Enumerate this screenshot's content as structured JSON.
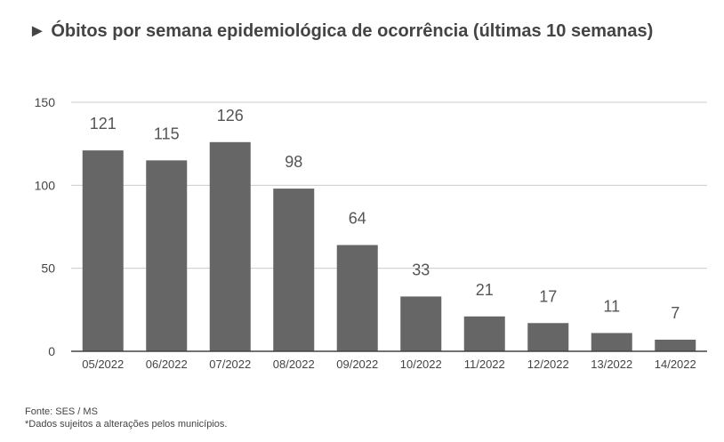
{
  "title": "► Óbitos por semana epidemiológica de ocorrência (últimas 10 semanas)",
  "footer": {
    "source": "Fonte: SES / MS",
    "note": "*Dados sujeitos a alterações pelos municípios."
  },
  "colors": {
    "bar": "#666666",
    "grid": "#cccccc",
    "axis": "#444444",
    "text": "#444444",
    "label": "#555555"
  },
  "chart_data": {
    "type": "bar",
    "categories": [
      "05/2022",
      "06/2022",
      "07/2022",
      "08/2022",
      "09/2022",
      "10/2022",
      "11/2022",
      "12/2022",
      "13/2022",
      "14/2022"
    ],
    "values": [
      121,
      115,
      126,
      98,
      64,
      33,
      21,
      17,
      11,
      7
    ],
    "data_labels": [
      "121",
      "115",
      "126",
      "98",
      "64",
      "33",
      "21",
      "17",
      "11",
      "7"
    ],
    "y_ticks": [
      0,
      50,
      100,
      150
    ],
    "ylim": [
      0,
      150
    ],
    "grid": true,
    "legend": "none"
  }
}
